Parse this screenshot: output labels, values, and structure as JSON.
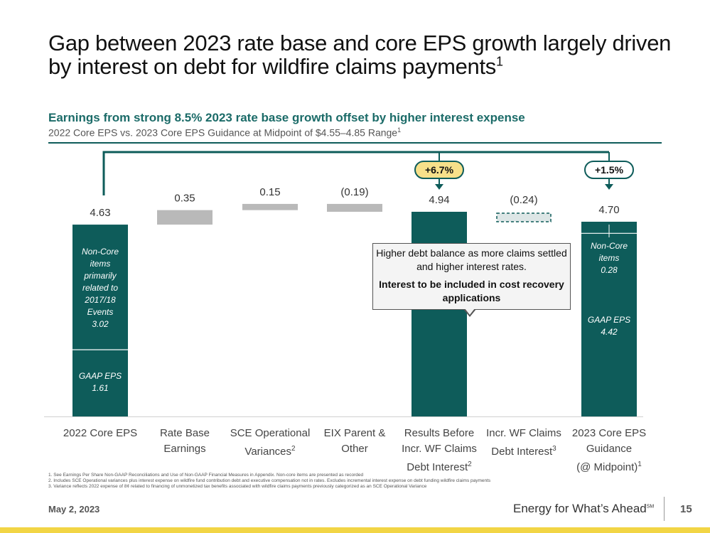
{
  "title_main": "Gap between 2023 rate base and core EPS growth largely driven by interest on debt for wildfire claims payments",
  "title_sup": "1",
  "subtitle": "Earnings from strong 8.5% 2023 rate base growth offset by higher interest expense",
  "subtitle2": "2022 Core EPS vs. 2023 Core EPS Guidance at Midpoint of $4.55–4.85 Range",
  "subtitle2_sup": "1",
  "colors": {
    "teal": "#0e5c5a",
    "gray": "#b9b9b9",
    "dashed_fill": "#dde6e6",
    "badge_yellow": "#f7e08a",
    "badge_white": "#ffffff"
  },
  "chart_data": {
    "type": "waterfall",
    "ylim": [
      0,
      5.2
    ],
    "categories": [
      {
        "lines": [
          "2022 Core EPS"
        ],
        "sup": ""
      },
      {
        "lines": [
          "Rate Base",
          "Earnings"
        ],
        "sup": ""
      },
      {
        "lines": [
          "SCE Operational",
          "Variances"
        ],
        "sup": "2"
      },
      {
        "lines": [
          "EIX Parent &",
          "Other"
        ],
        "sup": ""
      },
      {
        "lines": [
          "Results Before",
          "Incr. WF Claims",
          "Debt Interest"
        ],
        "sup": "2"
      },
      {
        "lines": [
          "Incr. WF Claims",
          "Debt Interest"
        ],
        "sup": "3"
      },
      {
        "lines": [
          "2023 Core EPS",
          "Guidance",
          "(@ Midpoint)"
        ],
        "sup": "1"
      }
    ],
    "bars": [
      {
        "label": "4.63",
        "kind": "total",
        "start": 0,
        "end": 4.63,
        "segments": [
          {
            "name": "GAAP EPS",
            "value": 1.61,
            "text": "GAAP EPS\n1.61"
          },
          {
            "name": "Non-Core items",
            "value": 3.02,
            "text": "Non-Core\nitems\nprimarily\nrelated to\n2017/18\nEvents\n3.02"
          }
        ]
      },
      {
        "label": "0.35",
        "kind": "delta",
        "start": 4.63,
        "end": 4.98
      },
      {
        "label": "0.15",
        "kind": "delta",
        "start": 4.98,
        "end": 5.13
      },
      {
        "label": "(0.19)",
        "kind": "delta",
        "start": 5.13,
        "end": 4.94
      },
      {
        "label": "4.94",
        "kind": "total",
        "start": 0,
        "end": 4.94,
        "segments": []
      },
      {
        "label": "(0.24)",
        "kind": "delta_dashed",
        "start": 4.94,
        "end": 4.7
      },
      {
        "label": "4.70",
        "kind": "total",
        "start": 0,
        "end": 4.7,
        "segments": [
          {
            "name": "GAAP EPS",
            "value": 4.42,
            "text": "GAAP EPS\n4.42"
          },
          {
            "name": "Non-Core items",
            "value": 0.28,
            "text": "Non-Core\nitems\n0.28"
          }
        ]
      }
    ],
    "growth_badges": [
      {
        "text": "+6.7%",
        "target_bar": 4,
        "style": "yellow"
      },
      {
        "text": "+1.5%",
        "target_bar": 6,
        "style": "white"
      }
    ]
  },
  "callout": {
    "line1": "Higher debt balance as more claims settled and higher interest rates.",
    "bold": "Interest to be included in cost recovery applications"
  },
  "footnotes": [
    "1.  See Earnings Per Share Non-GAAP Reconciliations and Use of Non-GAAP Financial Measures in Appendix. Non-core items are presented as recorded",
    "2.  Includes SCE Operational variances plus interest expense on wildfire fund contribution debt and executive compensation not in rates. Excludes incremental interest expense on debt funding wildfire claims payments",
    "3.  Variance reflects 2022 expense of 8¢ related to financing of unmonetized tax benefits associated with wildfire claims payments previously categorized as an SCE Operational Variance"
  ],
  "footer": {
    "date": "May 2, 2023",
    "tagline": "Energy for What’s Ahead",
    "tagline_mark": "SM",
    "page": "15"
  }
}
